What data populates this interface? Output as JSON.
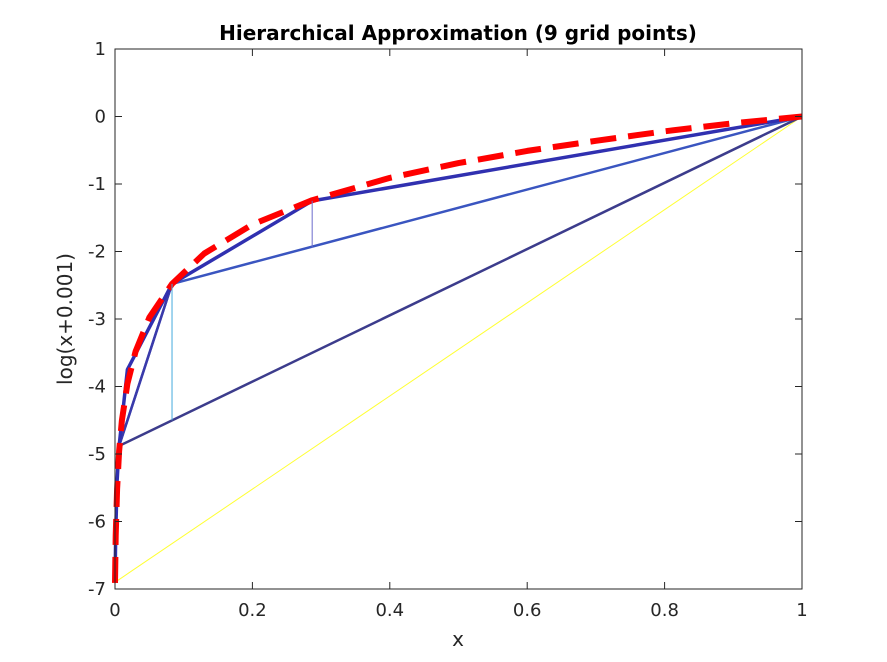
{
  "chart_data": {
    "type": "line",
    "title": "Hierarchical Approximation (9 grid points)",
    "xlabel": "x",
    "ylabel": "log(x+0.001)",
    "xlim": [
      0,
      1
    ],
    "ylim": [
      -7,
      1
    ],
    "xticks": [
      0,
      0.2,
      0.4,
      0.6,
      0.8,
      1
    ],
    "xtick_labels": [
      "0",
      "0.2",
      "0.4",
      "0.6",
      "0.8",
      "1"
    ],
    "yticks": [
      1,
      0,
      -1,
      -2,
      -3,
      -4,
      -5,
      -6,
      -7
    ],
    "ytick_labels": [
      "1",
      "0",
      "-1",
      "-2",
      "-3",
      "-4",
      "-5",
      "-6",
      "-7"
    ],
    "grid": false,
    "series": [
      {
        "color": "#ffff33",
        "style": "solid",
        "x": [
          0,
          1
        ],
        "y": [
          -6.9,
          0.0
        ]
      },
      {
        "color": "#3c3c8c",
        "style": "solid",
        "x": [
          0.006,
          1
        ],
        "y": [
          -4.88,
          0.0
        ]
      },
      {
        "color": "#3a55c0",
        "style": "solid",
        "x": [
          0.006,
          0.083,
          1
        ],
        "y": [
          -4.88,
          -2.48,
          0.0
        ]
      },
      {
        "color": "#3a3aaa",
        "style": "solid",
        "x": [
          0.006,
          0.083,
          0.287,
          1
        ],
        "y": [
          -4.88,
          -2.48,
          -1.25,
          0.0
        ]
      },
      {
        "color": "#3030b0",
        "style": "solid",
        "x": [
          0.0,
          0.001,
          0.003,
          0.006,
          0.018,
          0.083,
          0.287,
          1
        ],
        "y": [
          -6.9,
          -6.2,
          -5.4,
          -4.88,
          -3.75,
          -2.48,
          -1.25,
          0.0
        ]
      },
      {
        "color": "#ff0000",
        "style": "dashed",
        "x": [
          0.0,
          0.001,
          0.003,
          0.006,
          0.01,
          0.018,
          0.03,
          0.05,
          0.083,
          0.13,
          0.2,
          0.287,
          0.4,
          0.5,
          0.6,
          0.7,
          0.8,
          0.9,
          1.0
        ],
        "y": [
          -6.91,
          -6.21,
          -5.52,
          -4.96,
          -4.5,
          -3.96,
          -3.48,
          -2.98,
          -2.48,
          -2.03,
          -1.6,
          -1.24,
          -0.91,
          -0.69,
          -0.51,
          -0.36,
          -0.22,
          -0.1,
          0.0
        ]
      }
    ],
    "stems": [
      {
        "color": "#44aadd",
        "x": 0.083,
        "y": [
          -4.5,
          -2.48
        ]
      },
      {
        "color": "#6a6acc",
        "x": 0.287,
        "y": [
          -1.94,
          -1.25
        ]
      },
      {
        "color": "#bbbb44",
        "x": 0.0,
        "y": [
          -6.9,
          0.0
        ]
      }
    ]
  }
}
